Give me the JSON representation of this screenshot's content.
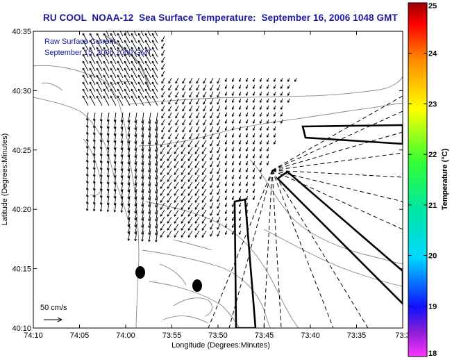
{
  "title": "RU COOL  NOAA-12  Sea Surface Temperature:  September 16, 2006 1048 GMT",
  "overlay": {
    "line1": "Raw Surface Current",
    "line2": "September 15, 2006 1000 GMT"
  },
  "axes": {
    "xlabel": "Longitude (Degrees:Minutes)",
    "ylabel": "Latitude (Degrees:Minutes)",
    "x_ticks": [
      "74:10",
      "74:05",
      "74:00",
      "73:55",
      "73:50",
      "73:45",
      "73:40",
      "73:35",
      "73:3"
    ],
    "y_ticks": [
      "40:35",
      "40:30",
      "40:25",
      "40:20",
      "40:15",
      "40:10"
    ]
  },
  "scale": {
    "label": "50 cm/s"
  },
  "colorbar": {
    "label": "Temperature (°C)",
    "ticks": [
      "25",
      "24",
      "23",
      "22",
      "21",
      "20",
      "19",
      "18"
    ],
    "min": 18,
    "max": 25
  },
  "colors": {
    "title": "#1a1aa0",
    "overlay_text": "#1a1aa0",
    "contour": "#888888",
    "vector": "#000000"
  }
}
